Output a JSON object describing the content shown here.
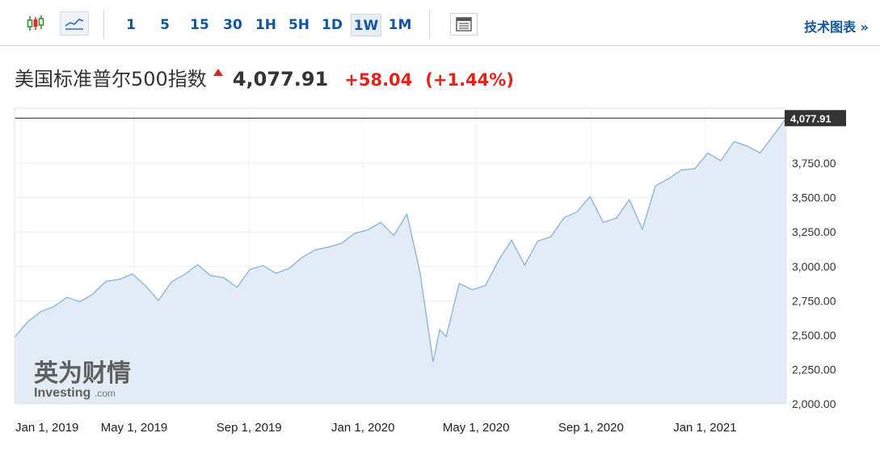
{
  "toolbar": {
    "chart_type_icons": [
      {
        "icon": "candlestick-icon",
        "active": false
      },
      {
        "icon": "area-chart-icon",
        "active": true
      }
    ],
    "intervals": [
      {
        "label": "1",
        "active": false
      },
      {
        "label": "5",
        "active": false
      },
      {
        "label": "15",
        "active": false
      },
      {
        "label": "30",
        "active": false
      },
      {
        "label": "1H",
        "active": false
      },
      {
        "label": "5H",
        "active": false
      },
      {
        "label": "1D",
        "active": false
      },
      {
        "label": "1W",
        "active": true
      },
      {
        "label": "1M",
        "active": false
      }
    ],
    "table_icon": "table-icon",
    "tech_chart_label": "技术图表 »"
  },
  "quote": {
    "name": "美国标准普尔500指数",
    "direction_icon": "up-arrow-icon",
    "price": "4,077.91",
    "change": "+58.04",
    "change_pct": "(+1.44%)"
  },
  "watermark": {
    "cn": "英为财情",
    "en": "Investing",
    "suffix": ".com"
  },
  "colors": {
    "line": "#8fb6db",
    "fill": "#e3ecf4",
    "up": "#e2231a",
    "link": "#1256a0",
    "tag_bg": "#333333"
  },
  "chart_data": {
    "type": "area",
    "title": "美国标准普尔500指数",
    "xlabel": "",
    "ylabel": "",
    "ylim": [
      2000,
      4150
    ],
    "y_ticks": [
      2000,
      2250,
      2500,
      2750,
      3000,
      3250,
      3500,
      3750
    ],
    "y_tick_labels": [
      "2,000.00",
      "2,250.00",
      "2,500.00",
      "2,750.00",
      "3,000.00",
      "3,250.00",
      "3,500.00",
      "3,750.00"
    ],
    "x_ticks": [
      "2019-01-01",
      "2019-05-01",
      "2019-09-01",
      "2020-01-01",
      "2020-05-01",
      "2020-09-01",
      "2021-01-01"
    ],
    "x_tick_labels": [
      "Jan 1, 2019",
      "May 1, 2019",
      "Sep 1, 2019",
      "Jan 1, 2020",
      "May 1, 2020",
      "Sep 1, 2020",
      "Jan 1, 2021"
    ],
    "current_value": 4077.91,
    "current_value_label": "4,077.91",
    "grid": true,
    "series": [
      {
        "x": [
          "2018-12-24",
          "2019-01-07",
          "2019-01-21",
          "2019-02-04",
          "2019-02-18",
          "2019-03-04",
          "2019-03-18",
          "2019-04-01",
          "2019-04-15",
          "2019-04-29",
          "2019-05-13",
          "2019-05-27",
          "2019-06-10",
          "2019-06-24",
          "2019-07-08",
          "2019-07-22",
          "2019-08-05",
          "2019-08-19",
          "2019-09-02",
          "2019-09-16",
          "2019-09-30",
          "2019-10-14",
          "2019-10-28",
          "2019-11-11",
          "2019-11-25",
          "2019-12-09",
          "2019-12-23",
          "2020-01-06",
          "2020-01-20",
          "2020-02-03",
          "2020-02-17",
          "2020-03-02",
          "2020-03-16",
          "2020-03-23",
          "2020-03-30",
          "2020-04-13",
          "2020-04-27",
          "2020-05-11",
          "2020-05-25",
          "2020-06-08",
          "2020-06-22",
          "2020-07-06",
          "2020-07-20",
          "2020-08-03",
          "2020-08-17",
          "2020-08-31",
          "2020-09-14",
          "2020-09-28",
          "2020-10-12",
          "2020-10-26",
          "2020-11-09",
          "2020-11-23",
          "2020-12-07",
          "2020-12-21",
          "2021-01-04",
          "2021-01-18",
          "2021-02-01",
          "2021-02-15",
          "2021-03-01",
          "2021-03-15",
          "2021-03-29"
        ],
        "y": [
          2485,
          2596,
          2670,
          2707,
          2775,
          2743,
          2800,
          2892,
          2905,
          2945,
          2860,
          2752,
          2887,
          2941,
          3013,
          2932,
          2918,
          2847,
          2978,
          3006,
          2950,
          2986,
          3066,
          3120,
          3140,
          3168,
          3240,
          3265,
          3320,
          3225,
          3380,
          2955,
          2305,
          2540,
          2490,
          2875,
          2830,
          2860,
          3043,
          3190,
          3010,
          3185,
          3215,
          3352,
          3397,
          3508,
          3320,
          3350,
          3485,
          3270,
          3585,
          3638,
          3702,
          3710,
          3824,
          3768,
          3908,
          3875,
          3825,
          3950,
          4077.91
        ]
      }
    ]
  }
}
